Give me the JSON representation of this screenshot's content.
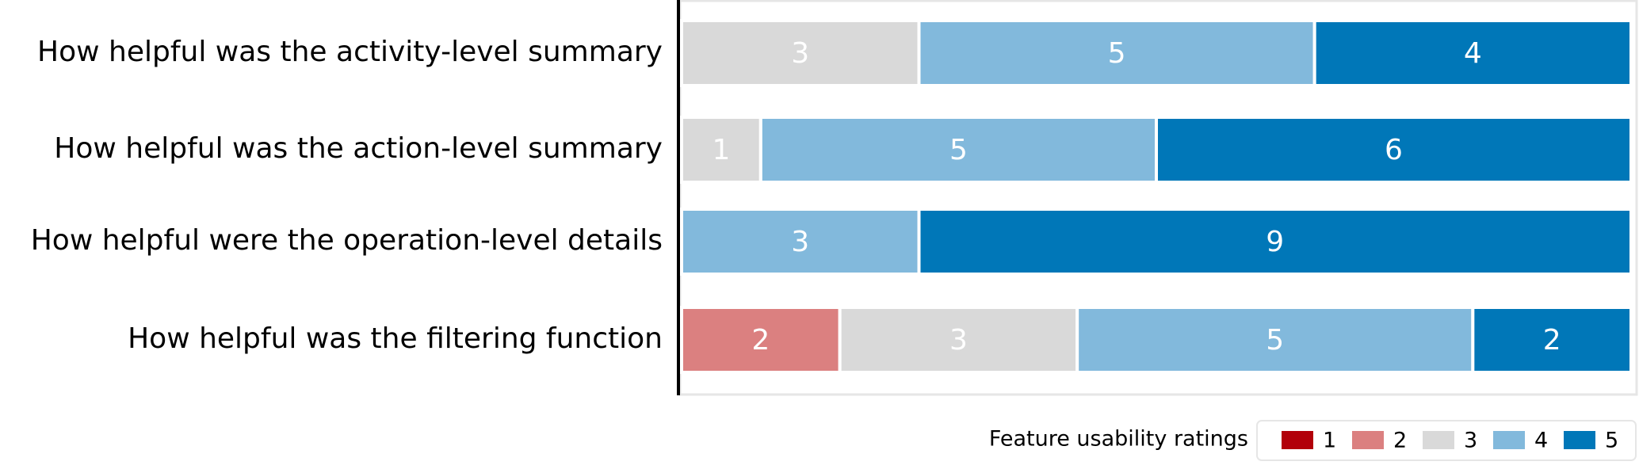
{
  "chart_data": {
    "type": "stacked_barh",
    "categories": [
      "How helpful was the activity-level summary",
      "How helpful was the action-level summary",
      "How helpful were the operation-level details",
      "How helpful was the filtering function"
    ],
    "series": [
      {
        "name": "1",
        "color": "#b2000a",
        "values": [
          0,
          0,
          0,
          0
        ]
      },
      {
        "name": "2",
        "color": "#db8080",
        "values": [
          0,
          0,
          0,
          2
        ]
      },
      {
        "name": "3",
        "color": "#d9d9d9",
        "values": [
          3,
          1,
          0,
          3
        ]
      },
      {
        "name": "4",
        "color": "#82b9dc",
        "values": [
          5,
          5,
          3,
          5
        ]
      },
      {
        "name": "5",
        "color": "#0077b8",
        "values": [
          4,
          6,
          9,
          2
        ]
      }
    ],
    "xlim": [
      0,
      12
    ],
    "legend_title": "Feature usability ratings",
    "legend": "lower right"
  }
}
